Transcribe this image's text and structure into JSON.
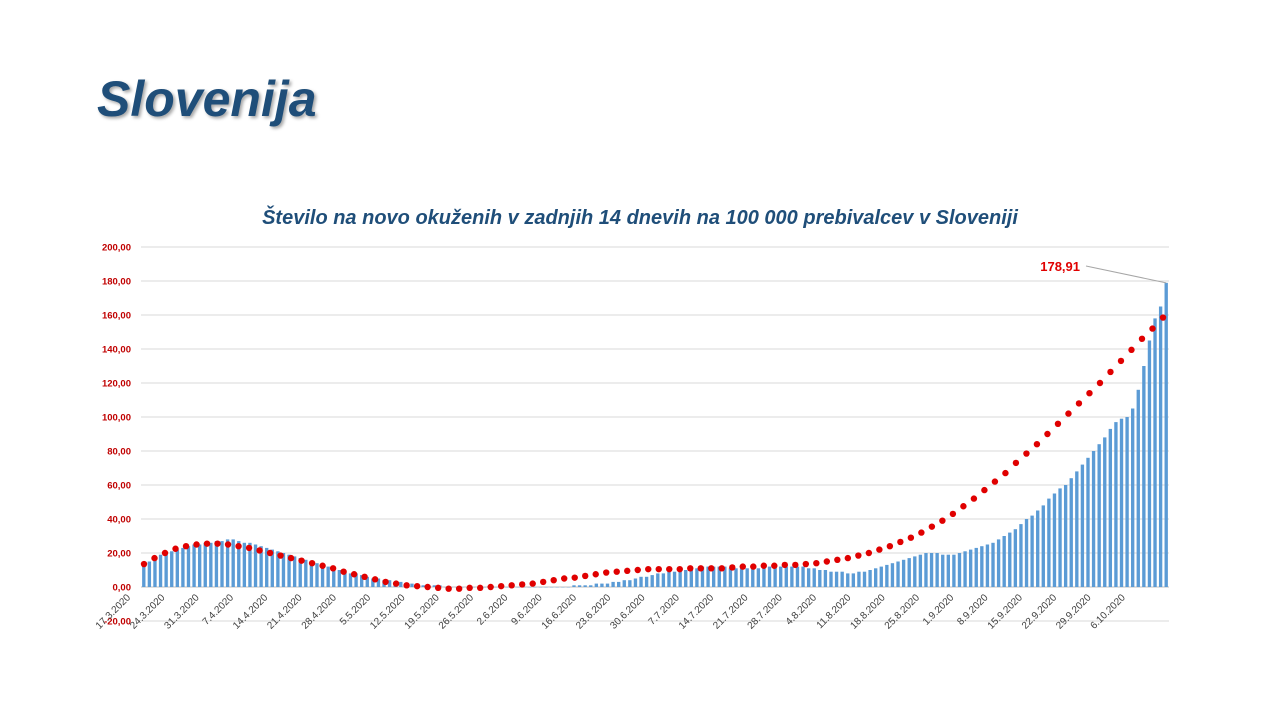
{
  "slide": {
    "title": "Slovenija"
  },
  "chart_data": {
    "type": "bar",
    "title": "Število na novo okuženih v zadnjih 14 dnevih na 100 000 prebivalcev v Sloveniji",
    "ylim": [
      -20,
      200
    ],
    "yticks": [
      "-20,00",
      "0,00",
      "20,00",
      "40,00",
      "60,00",
      "80,00",
      "100,00",
      "120,00",
      "140,00",
      "160,00",
      "180,00",
      "200,00"
    ],
    "ytick_values": [
      -20,
      0,
      20,
      40,
      60,
      80,
      100,
      120,
      140,
      160,
      180,
      200
    ],
    "xlabels": [
      "17.3.2020",
      "24.3.2020",
      "31.3.2020",
      "7.4.2020",
      "14.4.2020",
      "21.4.2020",
      "28.4.2020",
      "5.5.2020",
      "12.5.2020",
      "19.5.2020",
      "26.5.2020",
      "2.6.2020",
      "9.6.2020",
      "16.6.2020",
      "23.6.2020",
      "30.6.2020",
      "7.7.2020",
      "14.7.2020",
      "21.7.2020",
      "28.7.2020",
      "4.8.2020",
      "11.8.2020",
      "18.8.2020",
      "25.8.2020",
      "1.9.2020",
      "8.9.2020",
      "15.9.2020",
      "22.9.2020",
      "29.9.2020",
      "6.10.2020"
    ],
    "grid": true,
    "colors": {
      "bars": "#5b9bd5",
      "trend": "#e00000",
      "title": "#1f4e79",
      "ticks": "#c00000"
    },
    "annotation": {
      "text": "178,91",
      "value": 178.91
    },
    "series": [
      {
        "type": "bar",
        "values": [
          13,
          15,
          17,
          19,
          20,
          21,
          22,
          23,
          24,
          25,
          25,
          26,
          26,
          27,
          27,
          28,
          28,
          27,
          26,
          26,
          25,
          24,
          23,
          22,
          21,
          20,
          19,
          18,
          17,
          16,
          15,
          14,
          13,
          12,
          11,
          10,
          9,
          8,
          8,
          7,
          6,
          5,
          5,
          4,
          4,
          3,
          3,
          2,
          2,
          2,
          1,
          1,
          1,
          1,
          0,
          0,
          0,
          0,
          0,
          0,
          0,
          0,
          0,
          0,
          0,
          0,
          0,
          0,
          0,
          0,
          0,
          0,
          0,
          0,
          0,
          0,
          0,
          1,
          1,
          1,
          1,
          2,
          2,
          2,
          3,
          3,
          4,
          4,
          5,
          6,
          6,
          7,
          8,
          8,
          9,
          9,
          10,
          10,
          11,
          11,
          12,
          12,
          12,
          12,
          12,
          11,
          11,
          11,
          11,
          11,
          11,
          11,
          12,
          12,
          12,
          12,
          12,
          12,
          12,
          11,
          11,
          10,
          10,
          9,
          9,
          9,
          8,
          8,
          9,
          9,
          10,
          11,
          12,
          13,
          14,
          15,
          16,
          17,
          18,
          19,
          20,
          20,
          20,
          19,
          19,
          19,
          20,
          21,
          22,
          23,
          24,
          25,
          26,
          28,
          30,
          32,
          34,
          37,
          40,
          42,
          45,
          48,
          52,
          55,
          58,
          60,
          64,
          68,
          72,
          76,
          80,
          84,
          88,
          93,
          97,
          99,
          100,
          105,
          116,
          130,
          145,
          158,
          165,
          178.91
        ]
      },
      {
        "type": "scatter",
        "values": [
          13.5,
          17,
          20,
          22.5,
          24,
          25,
          25.5,
          25.5,
          25,
          24,
          23,
          21.5,
          20,
          18.5,
          17,
          15.5,
          14,
          12.5,
          11,
          9,
          7.5,
          6,
          4.5,
          3,
          2,
          1,
          0.5,
          0,
          -0.5,
          -1,
          -1,
          -0.5,
          -0.5,
          0,
          0.5,
          1,
          1.5,
          2,
          3,
          4,
          5,
          5.5,
          6.5,
          7.5,
          8.5,
          9,
          9.5,
          10,
          10.5,
          10.5,
          10.5,
          10.5,
          11,
          11,
          11,
          11,
          11.5,
          12,
          12,
          12.5,
          12.5,
          13,
          13,
          13.5,
          14,
          15,
          16,
          17,
          18.5,
          20,
          22,
          24,
          26.5,
          29,
          32,
          35.5,
          39,
          43,
          47.5,
          52,
          57,
          62,
          67,
          73,
          78.5,
          84,
          90,
          96,
          102,
          108,
          114,
          120,
          126.5,
          133,
          139.5,
          146,
          152,
          158.5
        ]
      }
    ]
  }
}
